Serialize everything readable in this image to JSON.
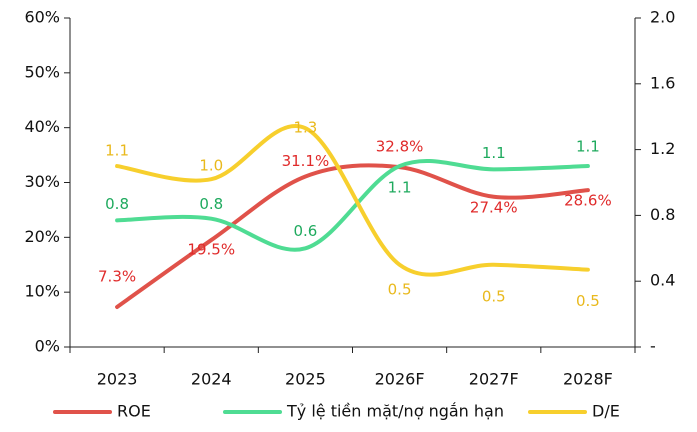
{
  "chart_data": {
    "type": "line",
    "categories": [
      "2023",
      "2024",
      "2025",
      "2026F",
      "2027F",
      "2028F"
    ],
    "series": [
      {
        "name": "ROE",
        "color": "#e0524a",
        "label_color": "#e02b2b",
        "values": [
          7.3,
          19.5,
          31.1,
          32.8,
          27.4,
          28.6
        ],
        "value_labels": [
          "7.3%",
          "19.5%",
          "31.1%",
          "32.8%",
          "27.4%",
          "28.6%"
        ]
      },
      {
        "name": "Tỷ lệ tiền mặt/nợ ngắn hạn",
        "color": "#4fdc93",
        "label_color": "#1faa5e",
        "axis": "y2",
        "values": [
          0.77,
          0.78,
          0.6,
          1.1,
          1.08,
          1.1
        ],
        "value_labels": [
          "0.8",
          "0.8",
          "0.6",
          "1.1",
          "1.1",
          "1.1"
        ]
      },
      {
        "name": "D/E",
        "color": "#f7cf2d",
        "label_color": "#e9b91c",
        "axis": "y2",
        "values": [
          1.1,
          1.02,
          1.33,
          0.5,
          0.5,
          0.47
        ],
        "value_labels": [
          "1.1",
          "1.0",
          "1.3",
          "0.5",
          "0.5",
          "0.5"
        ]
      }
    ],
    "ylim": [
      0,
      60
    ],
    "yticks": [
      {
        "value": 0,
        "label": "0%"
      },
      {
        "value": 10,
        "label": "10%"
      },
      {
        "value": 20,
        "label": "20%"
      },
      {
        "value": 30,
        "label": "30%"
      },
      {
        "value": 40,
        "label": "40%"
      },
      {
        "value": 50,
        "label": "50%"
      },
      {
        "value": 60,
        "label": "60%"
      }
    ],
    "y2lim": [
      0,
      2
    ],
    "y2ticks": [
      {
        "value": 0,
        "label": "-"
      },
      0.4,
      0.8,
      1.2,
      1.6,
      {
        "value": 2,
        "label": "2.0"
      }
    ],
    "legend": "bottom"
  }
}
